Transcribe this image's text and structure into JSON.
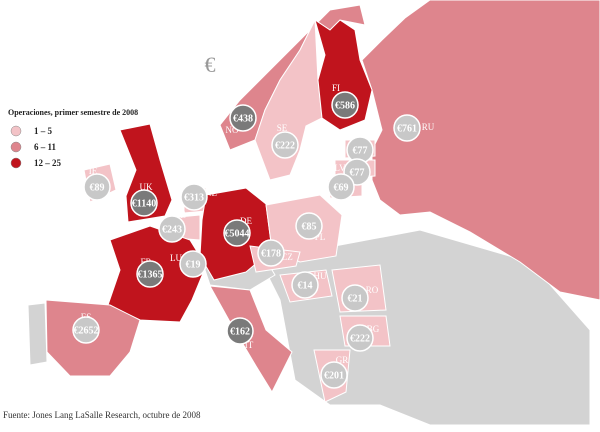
{
  "symbol": "€",
  "legend": {
    "title": "Operaciones, primer semestre de 2008",
    "items": [
      {
        "label": "1 – 5",
        "color": "#f3c3c7"
      },
      {
        "label": "6 – 11",
        "color": "#de858d"
      },
      {
        "label": "12 – 25",
        "color": "#c0141d"
      }
    ]
  },
  "markers": [
    {
      "code": "FI",
      "value": "€586"
    },
    {
      "code": "NO",
      "value": "€438"
    },
    {
      "code": "SE",
      "value": "€222"
    },
    {
      "code": "RU",
      "value": "€761"
    },
    {
      "code": "EE",
      "value": "€77"
    },
    {
      "code": "LV",
      "value": "€77"
    },
    {
      "code": "LT",
      "value": "€69"
    },
    {
      "code": "IE",
      "value": "€89"
    },
    {
      "code": "UK",
      "value": "€1140"
    },
    {
      "code": "NL",
      "value": "€313"
    },
    {
      "code": "BE",
      "value": "€243"
    },
    {
      "code": "DE",
      "value": "€5044"
    },
    {
      "code": "PL",
      "value": "€85"
    },
    {
      "code": "LU",
      "value": "€19"
    },
    {
      "code": "FR",
      "value": "€1365"
    },
    {
      "code": "CZ",
      "value": "€178"
    },
    {
      "code": "HU",
      "value": "€14"
    },
    {
      "code": "RO",
      "value": "€21"
    },
    {
      "code": "ES",
      "value": "€2652"
    },
    {
      "code": "IT",
      "value": "€162"
    },
    {
      "code": "BG",
      "value": "€222"
    },
    {
      "code": "GR",
      "value": "€201"
    }
  ],
  "source": "Fuente: Jones Lang LaSalle Research, octubre de 2008"
}
